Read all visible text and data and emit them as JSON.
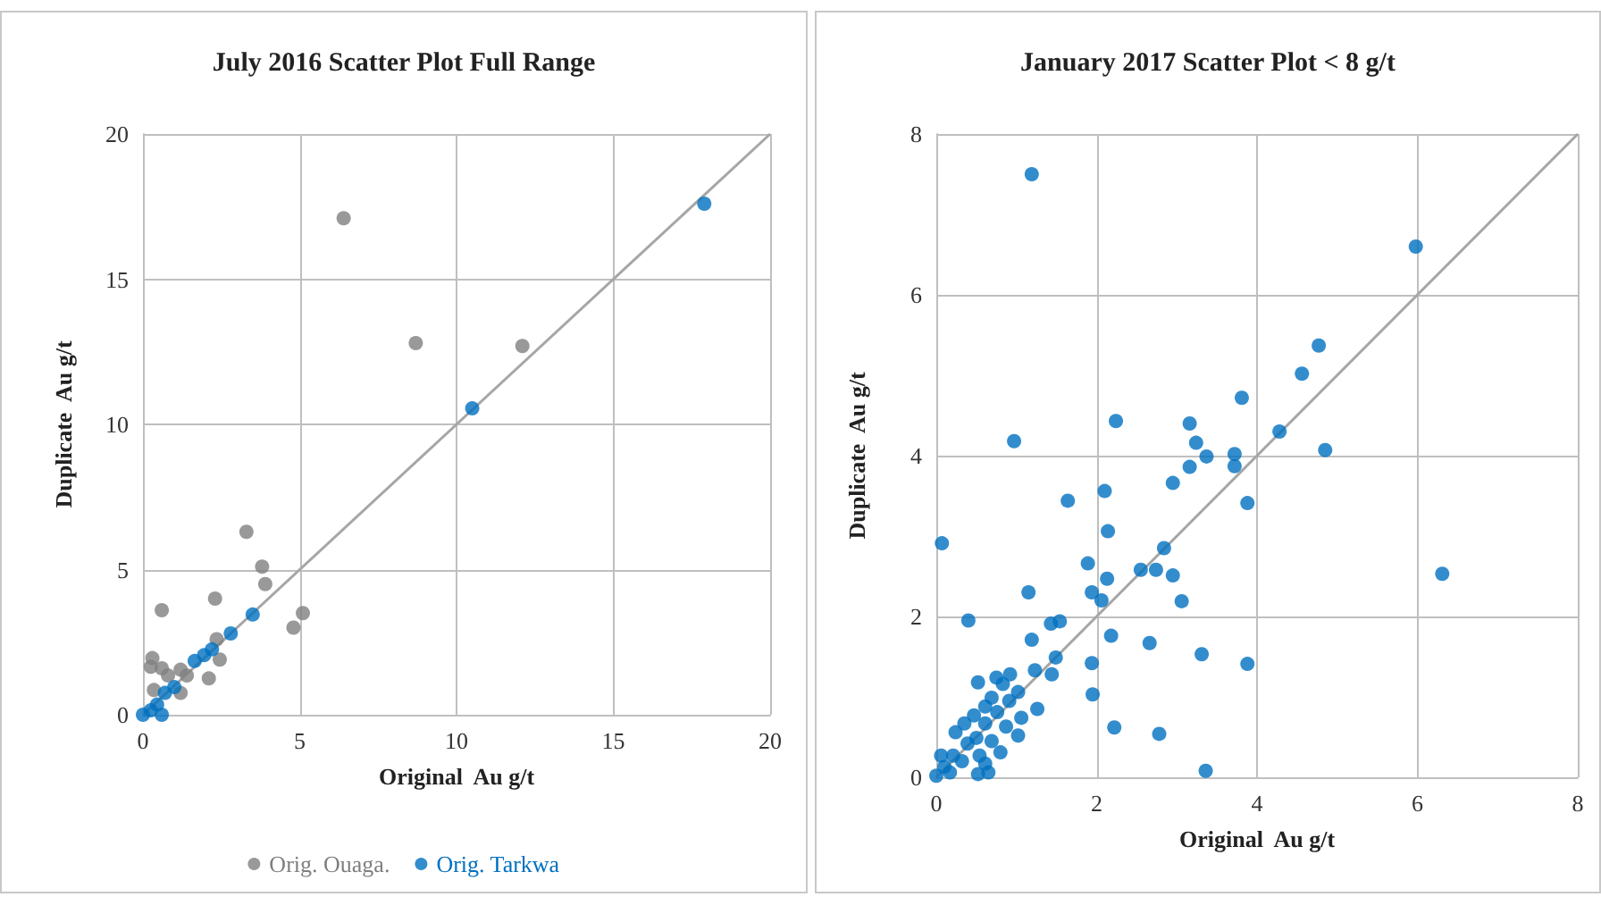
{
  "chart_data": [
    {
      "type": "scatter",
      "title": "July 2016 Scatter Plot Full Range",
      "xlabel": "Original  Au g/t",
      "ylabel": "Duplicate  Au g/t",
      "xlim": [
        0,
        20
      ],
      "ylim": [
        0,
        20
      ],
      "xticks": [
        0,
        5,
        10,
        15,
        20
      ],
      "yticks": [
        0,
        5,
        10,
        15,
        20
      ],
      "grid": true,
      "legend": "bottom",
      "marker": "circle",
      "series": [
        {
          "name": "Orig. Ouaga.",
          "color": "#7f7f7f",
          "x": [
            6.4,
            8.7,
            12.1,
            3.3,
            3.8,
            3.9,
            2.3,
            0.6,
            5.1,
            4.8,
            0.3,
            0.25,
            0.6,
            1.2,
            1.5,
            2.35,
            2.45,
            2.1,
            0.35,
            1.2,
            1.4,
            0.8
          ],
          "values": [
            17.1,
            12.8,
            12.7,
            6.3,
            5.1,
            4.5,
            4.0,
            3.6,
            3.5,
            3.0,
            1.95,
            1.65,
            1.6,
            1.55,
            null,
            2.6,
            1.9,
            1.25,
            0.85,
            0.75,
            1.35,
            1.35
          ]
        },
        {
          "name": "Orig. Tarkwa",
          "color": "#0070c0",
          "x": [
            17.9,
            10.5,
            3.5,
            2.8,
            2.2,
            1.95,
            1.65,
            1.0,
            0.7,
            0.45,
            0.15,
            0.0,
            0.6,
            0.25
          ],
          "values": [
            17.6,
            10.55,
            3.45,
            2.8,
            2.25,
            2.05,
            1.85,
            0.95,
            0.75,
            0.35,
            null,
            0.0,
            0.0,
            0.15
          ]
        },
        {
          "type": "line",
          "marker": "none",
          "color": "#a6a6a6",
          "x": [
            0,
            20
          ],
          "values": [
            0,
            20
          ]
        }
      ]
    },
    {
      "type": "scatter",
      "title": "January 2017 Scatter Plot < 8 g/t",
      "xlabel": "Original  Au g/t",
      "ylabel": "Duplicate  Au g/t",
      "xlim": [
        0,
        8
      ],
      "ylim": [
        0,
        8
      ],
      "xticks": [
        0,
        2,
        4,
        6,
        8
      ],
      "yticks": [
        0,
        2,
        4,
        6,
        8
      ],
      "grid": true,
      "marker": "circle",
      "series": [
        {
          "color": "#0070c0",
          "x": [
            1.19,
            5.98,
            4.77,
            4.56,
            3.81,
            2.24,
            3.16,
            4.28,
            0.97,
            3.24,
            4.85,
            3.72,
            3.37,
            3.72,
            3.16,
            2.95,
            1.64,
            3.88,
            2.1,
            2.14,
            0.07,
            2.84,
            1.89,
            2.55,
            2.74,
            2.95,
            6.31,
            2.13,
            1.94,
            1.15,
            2.06,
            3.06,
            0.4,
            1.43,
            1.54,
            2.18,
            1.19,
            2.66,
            3.31,
            1.94,
            3.88,
            1.49,
            1.23,
            1.44,
            1.95,
            1.26,
            2.22,
            2.78,
            3.36,
            0.52,
            0.92,
            0.83,
            1.02,
            0.91,
            0.69,
            0.61,
            0.76,
            0.47,
            0.35,
            0.24,
            0.61,
            0.87,
            1.02,
            0.8,
            0.61,
            0.52,
            0.65,
            0.39,
            0.21,
            0.06,
            0.1,
            0.0,
            0.17,
            0.32,
            0.5,
            0.69,
            0.54,
            1.06,
            0.75
          ],
          "values": [
            7.5,
            6.6,
            5.37,
            5.02,
            4.72,
            4.43,
            4.4,
            4.3,
            4.18,
            4.16,
            4.07,
            4.02,
            3.99,
            3.87,
            3.86,
            3.66,
            3.44,
            3.41,
            3.56,
            3.06,
            2.91,
            2.85,
            2.66,
            2.58,
            2.58,
            2.51,
            2.53,
            2.47,
            2.3,
            2.3,
            2.2,
            2.19,
            1.95,
            1.91,
            1.94,
            1.76,
            1.71,
            1.67,
            1.53,
            1.42,
            1.41,
            1.49,
            1.33,
            1.28,
            1.03,
            0.85,
            0.62,
            0.54,
            0.08,
            1.18,
            1.28,
            1.16,
            1.06,
            0.95,
            0.99,
            0.88,
            0.81,
            0.77,
            0.67,
            0.56,
            0.67,
            0.63,
            0.52,
            0.31,
            0.17,
            0.04,
            0.06,
            0.42,
            0.27,
            0.27,
            0.13,
            0.02,
            0.06,
            0.2,
            0.49,
            0.45,
            0.27,
            0.74,
            1.24
          ]
        },
        {
          "type": "line",
          "marker": "none",
          "color": "#a6a6a6",
          "x": [
            0,
            8
          ],
          "values": [
            0,
            8
          ]
        }
      ]
    }
  ]
}
